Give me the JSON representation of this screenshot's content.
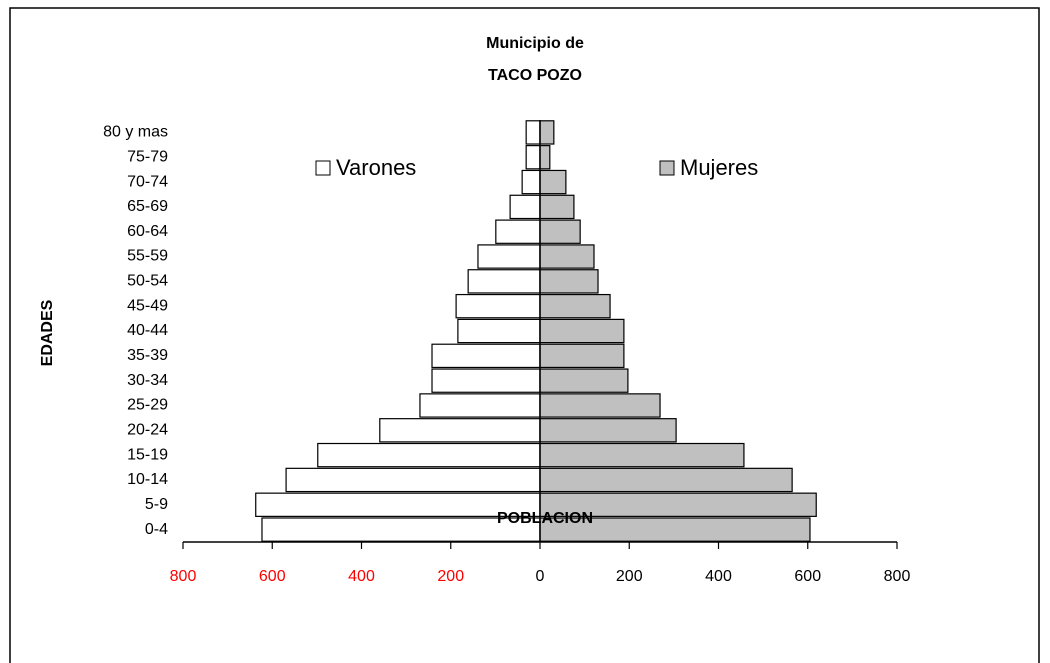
{
  "chart_data": {
    "type": "pyramid",
    "title": "Municipio de",
    "subtitle": "TACO POZO",
    "ylabel": "EDADES",
    "xlabel": "POBLACION",
    "categories": [
      "0-4",
      "5-9",
      "10-14",
      "15-19",
      "20-24",
      "25-29",
      "30-34",
      "35-39",
      "40-44",
      "45-49",
      "50-54",
      "55-59",
      "60-64",
      "65-69",
      "70-74",
      "75-79",
      "80 y mas"
    ],
    "series": [
      {
        "name": "Varones",
        "color": "#ffffff",
        "values": [
          -623,
          -637,
          -569,
          -498,
          -359,
          -269,
          -242,
          -242,
          -184,
          -188,
          -161,
          -139,
          -99,
          -67,
          -40,
          -31,
          -31
        ]
      },
      {
        "name": "Mujeres",
        "color": "#c0c0c0",
        "values": [
          605,
          619,
          565,
          457,
          305,
          269,
          197,
          188,
          188,
          157,
          130,
          121,
          90,
          76,
          58,
          22,
          31
        ]
      }
    ],
    "xlim": [
      -800,
      800
    ],
    "xticks": [
      {
        "value": -800,
        "label": "800"
      },
      {
        "value": -600,
        "label": "600"
      },
      {
        "value": -400,
        "label": "400"
      },
      {
        "value": -200,
        "label": "200"
      },
      0,
      200,
      400,
      600,
      800
    ],
    "negative_tick_color": "#ff0000"
  }
}
